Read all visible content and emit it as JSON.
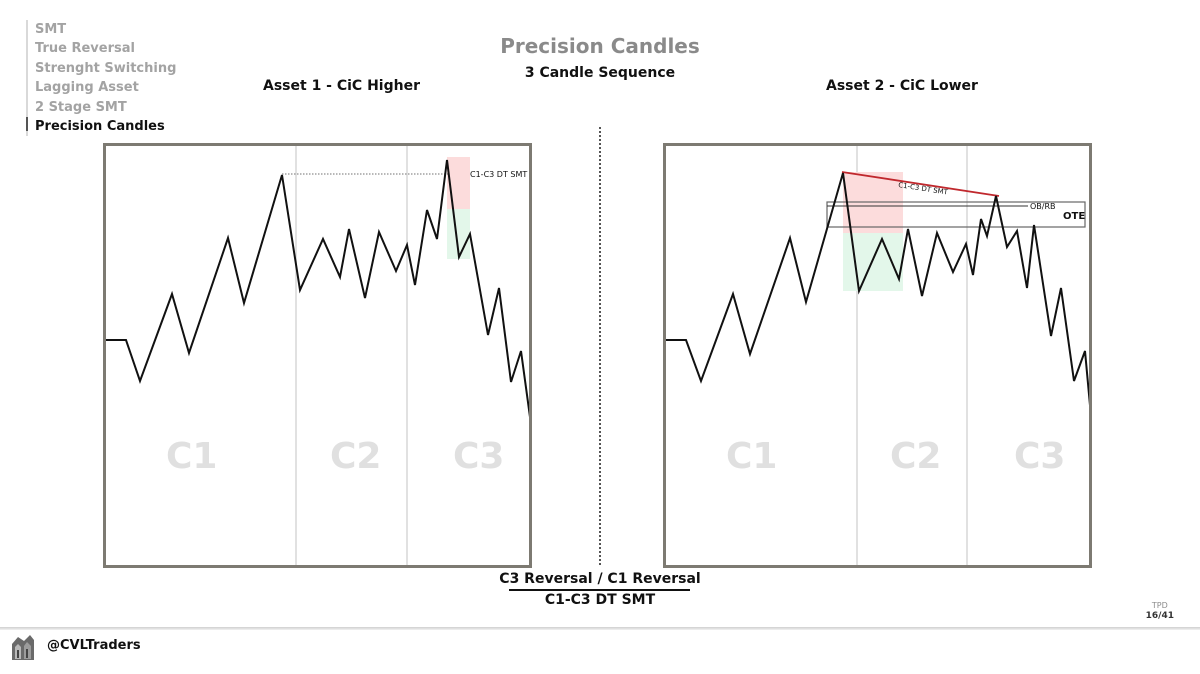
{
  "menu": {
    "items": [
      {
        "label": "SMT",
        "active": false
      },
      {
        "label": "True Reversal",
        "active": false
      },
      {
        "label": "Strenght Switching",
        "active": false
      },
      {
        "label": "Lagging Asset",
        "active": false
      },
      {
        "label": "2 Stage SMT",
        "active": false
      },
      {
        "label": "Precision Candles",
        "active": true
      }
    ]
  },
  "header": {
    "title": "Precision Candles",
    "subtitle": "3 Candle Sequence"
  },
  "asset1": {
    "title": "Asset 1 - CiC Higher",
    "candles": [
      "C1",
      "C2",
      "C3"
    ],
    "annotation": "C1-C3 DT SMT"
  },
  "asset2": {
    "title": "Asset 2 - CiC Lower",
    "candles": [
      "C1",
      "C2",
      "C3"
    ],
    "smt_annotation": "C1-C3 DT SMT",
    "ob_label": "OB/RB",
    "ote_label": "OTE"
  },
  "bottom": {
    "line1": "C3 Reversal / C1 Reversal",
    "line2": "C1-C3 DT SMT"
  },
  "footer": {
    "tag": "TPD",
    "page": "16/41",
    "handle": "@CVLTraders"
  },
  "colors": {
    "title_gray": "#8a8a8a",
    "menu_inactive": "#a3a3a3",
    "frame": "#7d7a72",
    "bearish_zone": "#fcdcdc",
    "bullish_zone": "#e3f7ea",
    "smt_line": "#c0282d"
  }
}
